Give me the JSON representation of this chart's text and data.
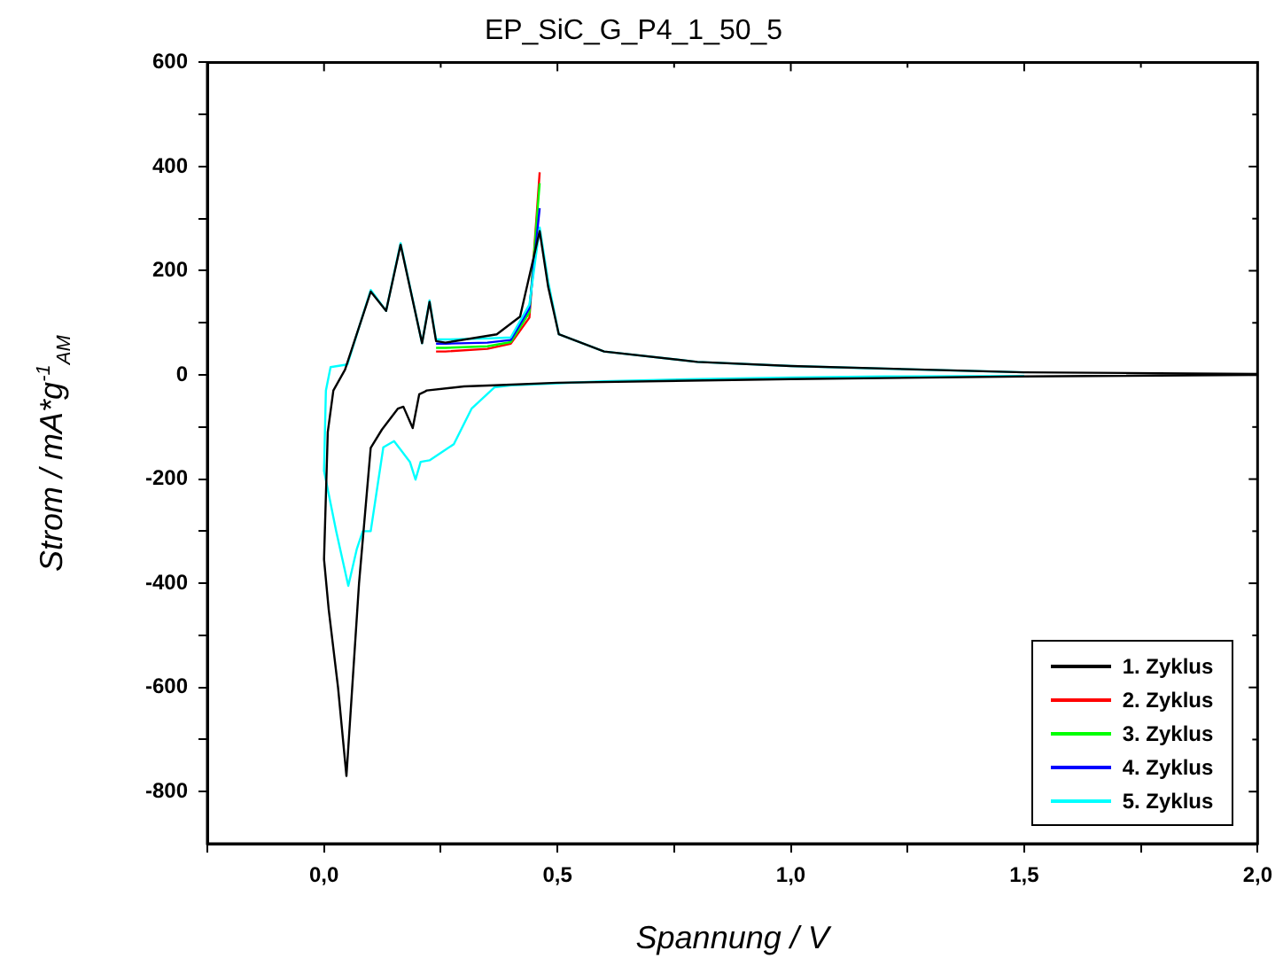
{
  "chart_data": {
    "type": "line",
    "title": "EP_SiC_G_P4_1_50_5",
    "xlabel": "Spannung / V",
    "ylabel": "Strom / mA*g$^{-1}$$_{AM}$",
    "xlim": [
      -0.25,
      2.0
    ],
    "xticks": [
      {
        "value": -0.25,
        "label": null
      },
      {
        "value": 0,
        "label": "0,0"
      },
      {
        "value": 0.25,
        "label": null
      },
      {
        "value": 0.5,
        "label": "0,5"
      },
      {
        "value": 0.75,
        "label": null
      },
      {
        "value": 1.0,
        "label": "1,0"
      },
      {
        "value": 1.25,
        "label": null
      },
      {
        "value": 1.5,
        "label": "1,5"
      },
      {
        "value": 1.75,
        "label": null
      },
      {
        "value": 2.0,
        "label": "2,0"
      }
    ],
    "ylim": [
      -900,
      600
    ],
    "yticks": [
      -800,
      {
        "value": -700,
        "label": null
      },
      -600,
      {
        "value": -500,
        "label": null
      },
      -400,
      {
        "value": -300,
        "label": null
      },
      -200,
      {
        "value": -100,
        "label": null
      },
      0,
      {
        "value": 100,
        "label": null
      },
      200,
      {
        "value": 300,
        "label": null
      },
      400,
      {
        "value": 500,
        "label": null
      },
      600
    ],
    "grid": false,
    "legend": "bottom right",
    "marker": "none",
    "line_style": "solid",
    "series": [
      {
        "name": "1. Zyklus",
        "color": "#000000",
        "x": [
          2.0,
          1.5,
          1.0,
          0.5,
          0.365,
          0.3,
          0.22,
          0.214,
          0.204,
          0.19,
          0.17,
          0.158,
          0.124,
          0.1,
          0.075,
          0.048,
          0.03,
          0.01,
          0.0,
          0.008,
          0.02,
          0.045,
          0.1,
          0.133,
          0.164,
          0.21,
          0.226,
          0.24,
          0.26,
          0.37,
          0.42,
          0.462,
          0.48,
          0.503,
          0.6,
          0.8,
          1.0,
          1.5,
          2.0
        ],
        "values": [
          0,
          -3,
          -8,
          -15,
          -20,
          -22,
          -30,
          -33,
          -37,
          -102,
          -61,
          -65,
          -105,
          -140,
          -400,
          -770,
          -600,
          -450,
          -354,
          -110,
          -30,
          10,
          160,
          123,
          250,
          61,
          140,
          65,
          62,
          78,
          112,
          276,
          170,
          78,
          45,
          25,
          17,
          5,
          2
        ]
      },
      {
        "name": "2. Zyklus",
        "color": "#ff0000",
        "x": [
          0.24,
          0.26,
          0.35,
          0.4,
          0.44,
          0.462
        ],
        "values": [
          45,
          45,
          50,
          60,
          110,
          389
        ]
      },
      {
        "name": "3. Zyklus",
        "color": "#00ff00",
        "x": [
          0.24,
          0.26,
          0.35,
          0.4,
          0.44,
          0.462
        ],
        "values": [
          52,
          52,
          55,
          63,
          120,
          368
        ]
      },
      {
        "name": "4. Zyklus",
        "color": "#0000ff",
        "x": [
          0.24,
          0.26,
          0.35,
          0.4,
          0.44,
          0.462
        ],
        "values": [
          60,
          60,
          62,
          67,
          128,
          320
        ]
      },
      {
        "name": "5. Zyklus",
        "color": "#00ffff",
        "x": [
          1.5,
          1.2,
          1.0,
          0.8,
          0.6,
          0.5,
          0.4,
          0.365,
          0.316,
          0.278,
          0.226,
          0.207,
          0.196,
          0.184,
          0.15,
          0.127,
          0.1,
          0.083,
          0.07,
          0.052,
          0.026,
          0.0,
          0.004,
          0.014,
          0.05,
          0.1,
          0.133,
          0.164,
          0.21,
          0.226,
          0.24,
          0.26,
          0.35,
          0.4,
          0.44,
          0.462,
          0.48,
          0.503,
          0.6,
          0.8,
          1.0,
          1.2,
          1.5
        ],
        "values": [
          -2,
          -3,
          -5,
          -8,
          -12,
          -16,
          -20,
          -24,
          -65,
          -133,
          -164,
          -167,
          -201,
          -167,
          -127,
          -139,
          -300,
          -300,
          -335,
          -405,
          -300,
          -184,
          -30,
          15,
          20,
          163,
          123,
          253,
          61,
          143,
          68,
          68,
          70,
          72,
          135,
          283,
          180,
          78,
          45,
          25,
          17,
          12,
          5
        ]
      }
    ]
  }
}
